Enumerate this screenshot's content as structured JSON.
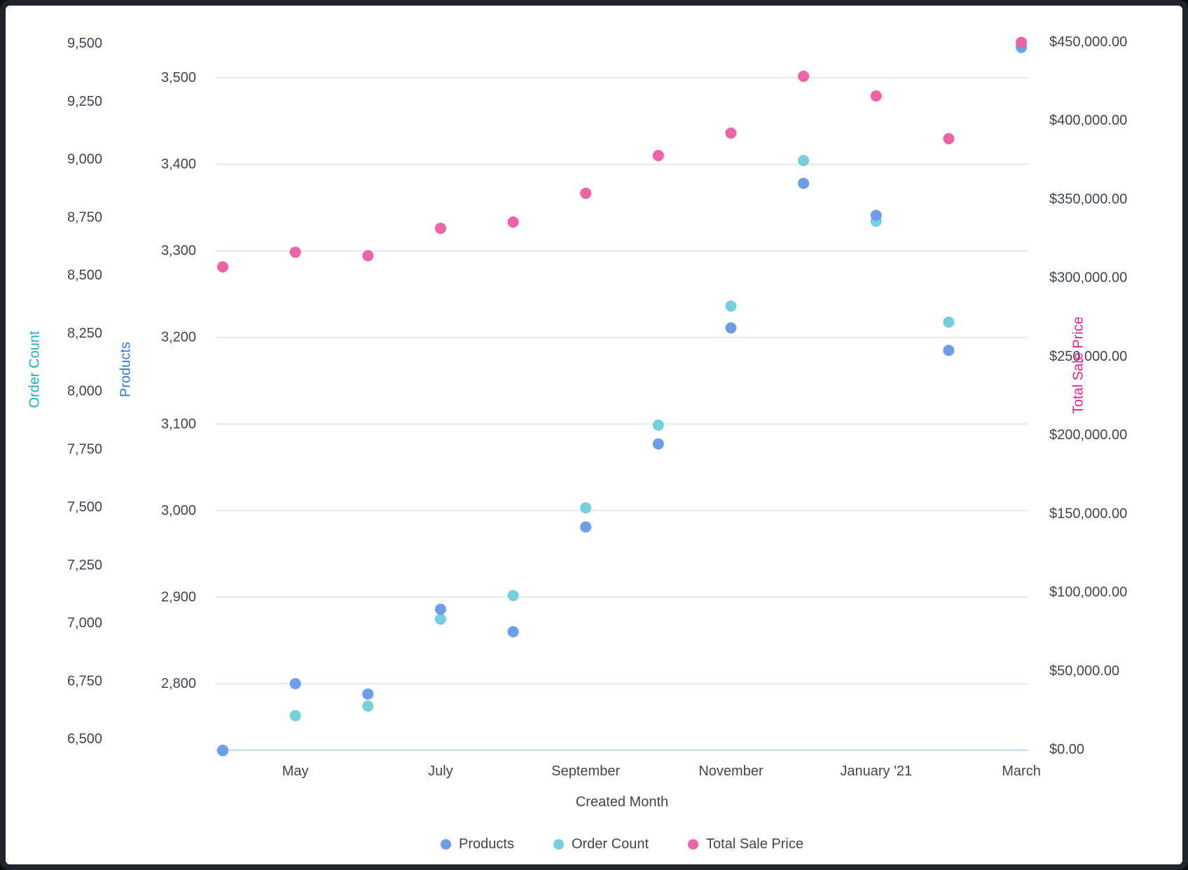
{
  "chart_data": {
    "type": "scatter",
    "title": "",
    "x_axis": {
      "title": "Created Month",
      "n_points": 12,
      "tick_labels": [
        "May",
        "July",
        "September",
        "November",
        "January '21",
        "March"
      ],
      "tick_indices": [
        1,
        3,
        5,
        7,
        9,
        11
      ]
    },
    "y_axes": {
      "order_count": {
        "title": "Order Count",
        "title_color": "#12b3cb",
        "side": "left-outer",
        "min": 6500,
        "max": 9500,
        "tick_step": 250,
        "tick_labels": [
          "6,500",
          "6,750",
          "7,000",
          "7,250",
          "7,500",
          "7,750",
          "8,000",
          "8,250",
          "8,500",
          "8,750",
          "9,000",
          "9,250",
          "9,500"
        ]
      },
      "products": {
        "title": "Products",
        "title_color": "#2979f2",
        "side": "left-inner",
        "min": 2800,
        "max": 3500,
        "tick_step": 100,
        "tick_labels": [
          "2,800",
          "2,900",
          "3,000",
          "3,100",
          "3,200",
          "3,300",
          "3,400",
          "3,500"
        ]
      },
      "total_sale_price": {
        "title": "Total Sale Price",
        "title_color": "#ed1e8c",
        "side": "right",
        "min": 0,
        "max": 450000,
        "tick_step": 50000,
        "tick_labels": [
          "$0.00",
          "$50,000.00",
          "$100,000.00",
          "$150,000.00",
          "$200,000.00",
          "$250,000.00",
          "$300,000.00",
          "$350,000.00",
          "$400,000.00",
          "$450,000.00"
        ]
      }
    },
    "series": [
      {
        "name": "Products",
        "axis": "products",
        "color": "#6d9ee9",
        "values": [
          2723,
          2800,
          2788,
          2886,
          2860,
          2981,
          3077,
          3211,
          3378,
          3341,
          3185,
          3536
        ]
      },
      {
        "name": "Order Count",
        "axis": "order_count",
        "color": "#74d0dd",
        "values": [
          6449,
          6601,
          6642,
          7017,
          7119,
          7497,
          7854,
          8367,
          8995,
          8733,
          8298,
          9481
        ]
      },
      {
        "name": "Total Sale Price",
        "axis": "total_sale_price",
        "color": "#ee62a6",
        "values": [
          307000,
          316300,
          314100,
          331500,
          335500,
          353800,
          377800,
          392100,
          428200,
          415700,
          388500,
          449800
        ]
      }
    ],
    "grid": "horizontal gridlines aligned to Products axis ticks",
    "legend_position": "bottom-center"
  },
  "colors": {
    "tick_text": "#3d464d",
    "gridline": "#e4e4e4",
    "baseline": "#ccd9ee",
    "background": "#ffffff",
    "frame": "#1f252b"
  }
}
